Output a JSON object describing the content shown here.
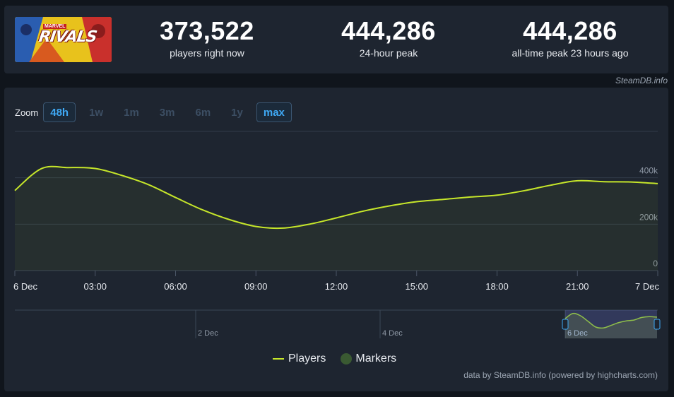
{
  "banner": {
    "brand": "MARVEL",
    "title": "RIVALS"
  },
  "stats": [
    {
      "value": "373,522",
      "label": "players right now"
    },
    {
      "value": "444,286",
      "label": "24-hour peak"
    },
    {
      "value": "444,286",
      "label": "all-time peak 23 hours ago"
    }
  ],
  "credit_top": "SteamDB.info",
  "zoom": {
    "label": "Zoom",
    "buttons": [
      {
        "label": "48h",
        "active": true
      },
      {
        "label": "1w",
        "active": false
      },
      {
        "label": "1m",
        "active": false
      },
      {
        "label": "3m",
        "active": false
      },
      {
        "label": "6m",
        "active": false
      },
      {
        "label": "1y",
        "active": false
      },
      {
        "label": "max",
        "active": true
      }
    ]
  },
  "legend": {
    "players": "Players",
    "markers": "Markers"
  },
  "credit_bottom": "data by SteamDB.info (powered by highcharts.com)",
  "colors": {
    "line": "#c6e62a",
    "active_zoom": "#3fa9f5",
    "panel": "#1e2530"
  },
  "chart_data": {
    "type": "line",
    "title": "",
    "xlabel": "",
    "ylabel": "",
    "x_ticks": [
      "6 Dec",
      "03:00",
      "06:00",
      "09:00",
      "12:00",
      "15:00",
      "18:00",
      "21:00",
      "7 Dec"
    ],
    "y_ticks": [
      "0",
      "200k",
      "400k"
    ],
    "ylim": [
      0,
      600000
    ],
    "x_range_hours": [
      0,
      24
    ],
    "grid": true,
    "series": [
      {
        "name": "Players",
        "x": [
          0,
          1,
          2,
          3,
          4,
          5,
          6,
          7,
          8,
          9,
          10,
          11,
          12,
          13,
          14,
          15,
          16,
          17,
          18,
          19,
          20,
          21,
          22,
          23,
          24
        ],
        "values": [
          345000,
          440000,
          444000,
          440000,
          410000,
          370000,
          315000,
          262000,
          220000,
          190000,
          183000,
          200000,
          227000,
          256000,
          279000,
          297000,
          307000,
          317000,
          325000,
          344000,
          368000,
          387000,
          383000,
          382000,
          375000
        ]
      }
    ],
    "navigator": {
      "labels": [
        "2 Dec",
        "4 Dec",
        "6 Dec"
      ],
      "values": [
        350000,
        440000,
        400000,
        300000,
        200000,
        185000,
        230000,
        280000,
        310000,
        325000,
        370000,
        385000,
        375000
      ]
    }
  }
}
